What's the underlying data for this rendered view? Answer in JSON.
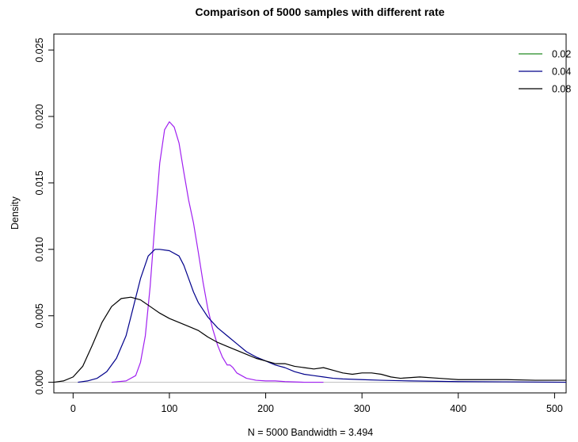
{
  "chart_data": {
    "type": "line",
    "title": "Comparison of 5000 samples with different rate",
    "xlabel": "N = 5000   Bandwidth = 3.494",
    "ylabel": "Density",
    "xlim": [
      -20,
      512
    ],
    "ylim": [
      -0.0008,
      0.0262
    ],
    "x_ticks": [
      0,
      100,
      200,
      300,
      400,
      500
    ],
    "x_tick_labels": [
      "0",
      "100",
      "200",
      "300",
      "400",
      "500"
    ],
    "y_ticks": [
      0.0,
      0.005,
      0.01,
      0.015,
      0.02,
      0.025
    ],
    "y_tick_labels": [
      "0.000",
      "0.005",
      "0.010",
      "0.015",
      "0.020",
      "0.025"
    ],
    "grid": false,
    "legend_position": "top-right",
    "legend": [
      {
        "label": "0.02",
        "color": "#228B22"
      },
      {
        "label": "0.04",
        "color": "#00008B"
      },
      {
        "label": "0.08",
        "color": "#000000"
      }
    ],
    "baseline_color": "#bebebe",
    "series": [
      {
        "color": "#A020F0",
        "x": [
          40,
          55,
          65,
          70,
          75,
          80,
          85,
          90,
          95,
          100,
          105,
          110,
          115,
          120,
          125,
          130,
          135,
          140,
          145,
          150,
          155,
          160,
          163,
          166,
          170,
          175,
          180,
          190,
          200,
          210,
          220,
          240,
          260
        ],
        "y": [
          0.0,
          0.0001,
          0.0005,
          0.0015,
          0.0035,
          0.0072,
          0.012,
          0.0165,
          0.019,
          0.0196,
          0.0192,
          0.018,
          0.0158,
          0.0137,
          0.012,
          0.0098,
          0.0075,
          0.0055,
          0.004,
          0.0028,
          0.0019,
          0.0013,
          0.0013,
          0.0011,
          0.0007,
          0.0005,
          0.0003,
          0.00015,
          0.0001,
          0.0001,
          5e-05,
          0.0,
          0.0
        ]
      },
      {
        "color": "#00008B",
        "x": [
          5,
          15,
          25,
          35,
          45,
          55,
          62,
          70,
          78,
          85,
          90,
          100,
          110,
          115,
          120,
          125,
          130,
          140,
          150,
          160,
          170,
          180,
          190,
          200,
          210,
          220,
          230,
          240,
          250,
          260,
          270,
          280,
          300,
          320,
          350,
          400,
          450,
          512
        ],
        "y": [
          0.0,
          0.0001,
          0.0003,
          0.0008,
          0.0018,
          0.0035,
          0.0055,
          0.0078,
          0.0095,
          0.01,
          0.01,
          0.0099,
          0.0095,
          0.0088,
          0.0078,
          0.0068,
          0.006,
          0.0049,
          0.0041,
          0.0035,
          0.0029,
          0.0023,
          0.0019,
          0.0016,
          0.0013,
          0.0011,
          0.0008,
          0.0006,
          0.0005,
          0.0004,
          0.0003,
          0.00025,
          0.0002,
          0.00015,
          0.0001,
          5e-05,
          3e-05,
          0.0
        ]
      },
      {
        "color": "#000000",
        "x": [
          -20,
          -10,
          0,
          10,
          20,
          30,
          40,
          50,
          60,
          70,
          80,
          90,
          100,
          110,
          120,
          130,
          140,
          150,
          160,
          170,
          180,
          190,
          200,
          210,
          220,
          230,
          240,
          250,
          260,
          270,
          280,
          290,
          300,
          310,
          320,
          330,
          340,
          360,
          380,
          400,
          420,
          450,
          480,
          512
        ],
        "y": [
          0.0,
          0.0001,
          0.0004,
          0.0012,
          0.0028,
          0.0045,
          0.0057,
          0.0063,
          0.0064,
          0.0062,
          0.0057,
          0.0052,
          0.0048,
          0.0045,
          0.0042,
          0.0039,
          0.0034,
          0.003,
          0.0027,
          0.0024,
          0.0021,
          0.0018,
          0.0016,
          0.0014,
          0.0014,
          0.0012,
          0.0011,
          0.001,
          0.0011,
          0.0009,
          0.0007,
          0.0006,
          0.0007,
          0.0007,
          0.0006,
          0.0004,
          0.0003,
          0.0004,
          0.0003,
          0.0002,
          0.0002,
          0.0002,
          0.00015,
          0.00015
        ]
      }
    ]
  }
}
